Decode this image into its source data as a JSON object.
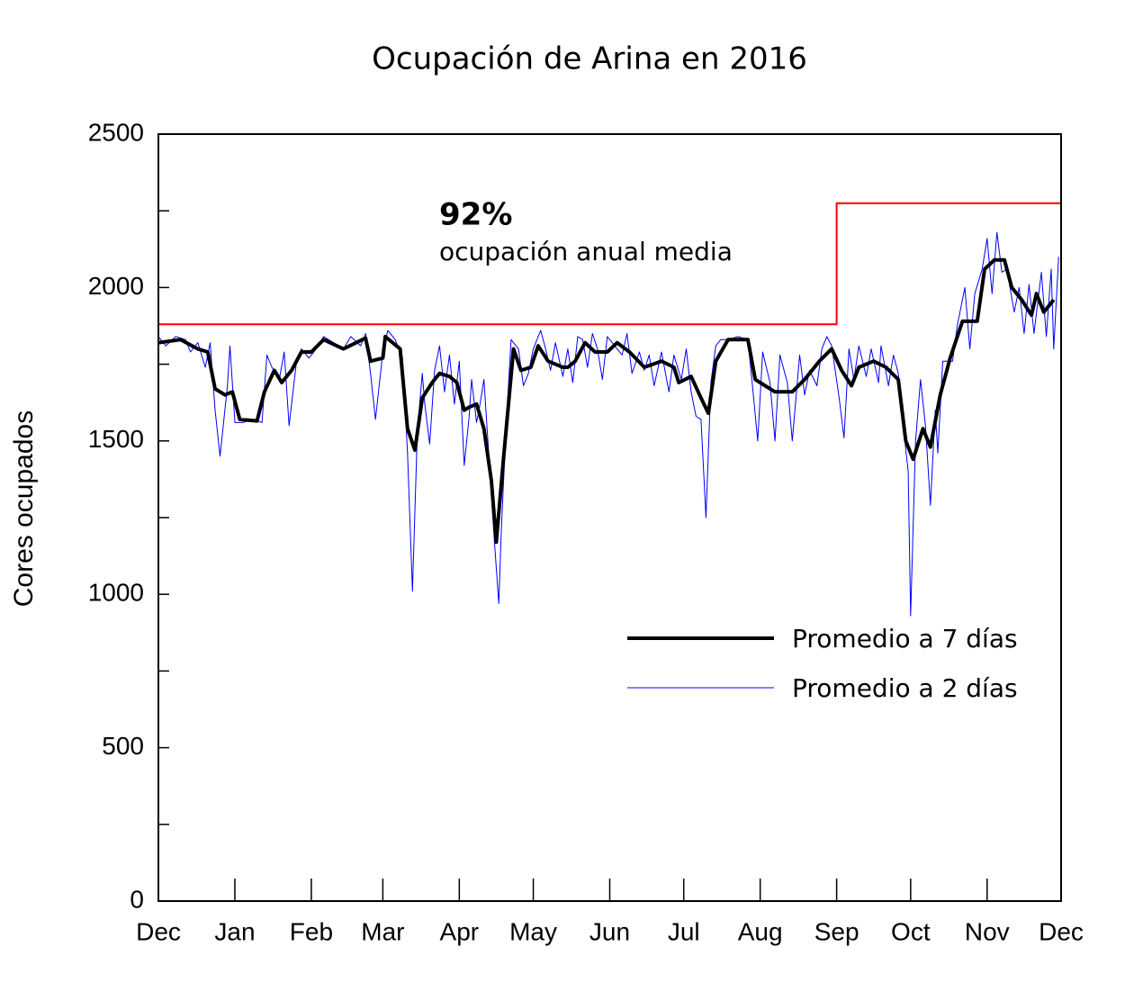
{
  "chart_data": {
    "type": "line",
    "title": "Ocupación de Arina en 2016",
    "ylabel": "Cores ocupados",
    "xlim": [
      0,
      366
    ],
    "xticks": [
      {
        "value": 0,
        "label": "Dec"
      },
      {
        "value": 31,
        "label": "Jan"
      },
      {
        "value": 62,
        "label": "Feb"
      },
      {
        "value": 91,
        "label": "Mar"
      },
      {
        "value": 122,
        "label": "Apr"
      },
      {
        "value": 152,
        "label": "May"
      },
      {
        "value": 183,
        "label": "Jun"
      },
      {
        "value": 213,
        "label": "Jul"
      },
      {
        "value": 244,
        "label": "Aug"
      },
      {
        "value": 275,
        "label": "Sep"
      },
      {
        "value": 305,
        "label": "Oct"
      },
      {
        "value": 336,
        "label": "Nov"
      },
      {
        "value": 366,
        "label": "Dec"
      }
    ],
    "ylim": [
      0,
      2500
    ],
    "yticks": [
      0,
      500,
      1000,
      1500,
      2000,
      2500
    ],
    "yticks_minor": [
      250,
      750,
      1250,
      1750,
      2250
    ],
    "legend_position": "center right",
    "annotation": {
      "headline": "92%",
      "text": "ocupación anual media"
    },
    "reference_line": {
      "color": "#ff0000",
      "x": [
        0,
        275,
        275,
        366
      ],
      "values": [
        1880,
        1880,
        2275,
        2275
      ]
    },
    "series": [
      {
        "name": "Promedio a 7 días",
        "color": "#000000",
        "width": 4,
        "x": [
          0,
          9,
          16,
          20,
          23,
          27,
          30,
          33,
          40,
          43,
          47,
          50,
          54,
          58,
          62,
          67,
          75,
          84,
          86,
          91,
          92,
          98,
          101,
          104,
          107,
          111,
          114,
          118,
          121,
          124,
          126,
          129,
          132,
          135,
          137,
          140,
          144,
          147,
          151,
          154,
          158,
          164,
          166,
          169,
          173,
          177,
          182,
          186,
          191,
          197,
          204,
          209,
          211,
          216,
          220,
          223,
          226,
          231,
          239,
          242,
          246,
          250,
          257,
          262,
          268,
          273,
          277,
          281,
          284,
          290,
          295,
          300,
          303,
          306,
          310,
          313,
          317,
          321,
          326,
          332,
          335,
          339,
          343,
          346,
          350,
          354,
          356,
          359,
          363
        ],
        "values": [
          1820,
          1830,
          1800,
          1790,
          1670,
          1650,
          1660,
          1570,
          1565,
          1660,
          1730,
          1690,
          1730,
          1790,
          1790,
          1830,
          1800,
          1835,
          1760,
          1770,
          1840,
          1800,
          1540,
          1470,
          1640,
          1690,
          1720,
          1710,
          1690,
          1600,
          1610,
          1620,
          1540,
          1370,
          1170,
          1450,
          1800,
          1730,
          1740,
          1810,
          1760,
          1740,
          1740,
          1760,
          1820,
          1790,
          1790,
          1820,
          1790,
          1740,
          1760,
          1740,
          1690,
          1710,
          1640,
          1590,
          1760,
          1830,
          1830,
          1700,
          1680,
          1660,
          1660,
          1700,
          1760,
          1800,
          1730,
          1680,
          1740,
          1760,
          1740,
          1700,
          1500,
          1440,
          1540,
          1480,
          1650,
          1770,
          1890,
          1890,
          2060,
          2090,
          2090,
          2000,
          1960,
          1910,
          1980,
          1920,
          1960
        ]
      },
      {
        "name": "Promedio a 2 días",
        "color": "#0000ff",
        "width": 1,
        "x": [
          0,
          3,
          7,
          11,
          13,
          16,
          19,
          21,
          23,
          25,
          28,
          29,
          31,
          34,
          39,
          42,
          44,
          46,
          49,
          51,
          53,
          56,
          58,
          61,
          64,
          67,
          71,
          75,
          78,
          82,
          84,
          86,
          88,
          91,
          93,
          96,
          99,
          101,
          103,
          105,
          107,
          108,
          110,
          112,
          114,
          116,
          118,
          120,
          122,
          124,
          126,
          127,
          129,
          130,
          132,
          134,
          136,
          138,
          139,
          141,
          143,
          146,
          148,
          150,
          152,
          155,
          157,
          159,
          161,
          164,
          166,
          168,
          170,
          172,
          174,
          176,
          178,
          180,
          182,
          185,
          188,
          190,
          192,
          195,
          197,
          199,
          201,
          204,
          207,
          209,
          212,
          214,
          216,
          218,
          220,
          222,
          224,
          226,
          228,
          231,
          235,
          239,
          241,
          243,
          245,
          248,
          250,
          252,
          255,
          257,
          260,
          262,
          264,
          267,
          269,
          271,
          273,
          276,
          278,
          280,
          282,
          284,
          287,
          289,
          292,
          293,
          296,
          298,
          300,
          302,
          304,
          305,
          307,
          309,
          311,
          313,
          315,
          316,
          318,
          320,
          322,
          324,
          327,
          329,
          331,
          334,
          336,
          338,
          340,
          342,
          344,
          347,
          349,
          351,
          353,
          355,
          358,
          360,
          362,
          363,
          365
        ],
        "values": [
          1840,
          1810,
          1840,
          1830,
          1790,
          1820,
          1740,
          1820,
          1600,
          1450,
          1680,
          1810,
          1560,
          1560,
          1570,
          1560,
          1780,
          1740,
          1700,
          1790,
          1550,
          1760,
          1800,
          1770,
          1800,
          1840,
          1820,
          1800,
          1840,
          1810,
          1850,
          1720,
          1570,
          1790,
          1860,
          1830,
          1770,
          1460,
          1010,
          1530,
          1720,
          1620,
          1490,
          1730,
          1810,
          1660,
          1780,
          1620,
          1760,
          1420,
          1580,
          1700,
          1560,
          1600,
          1700,
          1450,
          1200,
          970,
          1200,
          1550,
          1830,
          1800,
          1680,
          1720,
          1800,
          1860,
          1800,
          1730,
          1820,
          1710,
          1800,
          1690,
          1840,
          1830,
          1740,
          1850,
          1800,
          1700,
          1840,
          1810,
          1780,
          1850,
          1720,
          1790,
          1730,
          1780,
          1680,
          1790,
          1660,
          1780,
          1700,
          1800,
          1660,
          1580,
          1570,
          1250,
          1690,
          1810,
          1830,
          1830,
          1840,
          1830,
          1670,
          1500,
          1790,
          1690,
          1500,
          1780,
          1690,
          1500,
          1780,
          1650,
          1730,
          1680,
          1800,
          1840,
          1810,
          1640,
          1510,
          1800,
          1700,
          1810,
          1710,
          1800,
          1690,
          1810,
          1680,
          1780,
          1720,
          1550,
          1400,
          930,
          1500,
          1700,
          1550,
          1290,
          1600,
          1460,
          1760,
          1760,
          1760,
          1880,
          2000,
          1800,
          1980,
          2060,
          2160,
          1980,
          2180,
          2050,
          2060,
          1920,
          2000,
          1850,
          2010,
          1850,
          2050,
          1840,
          2060,
          1800,
          2100
        ]
      }
    ]
  }
}
